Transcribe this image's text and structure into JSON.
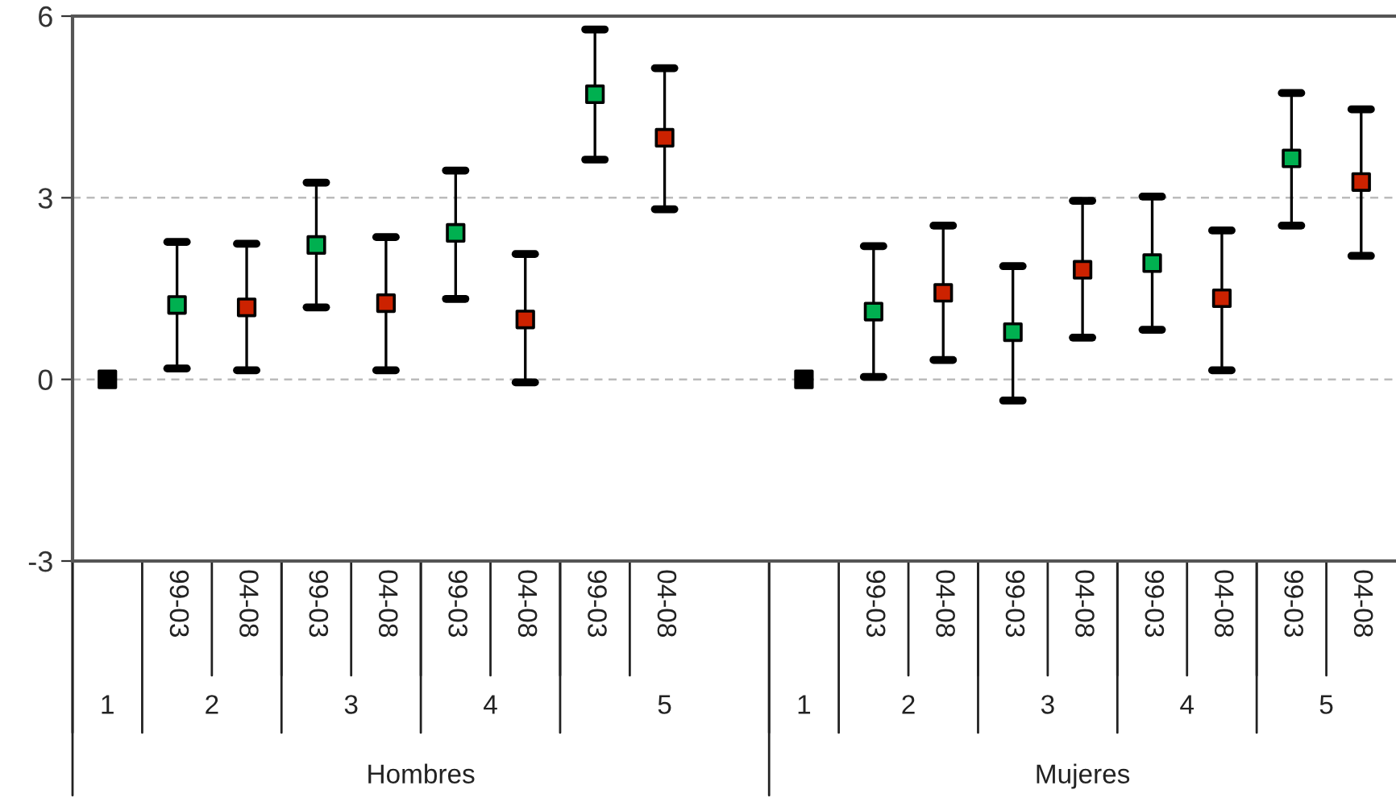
{
  "chart_data": {
    "type": "scatter",
    "categories": [
      null,
      "99-03",
      "04-08",
      "99-03",
      "04-08",
      "99-03",
      "04-08",
      "99-03",
      "04-08",
      null,
      null,
      "99-03",
      "04-08",
      "99-03",
      "04-08",
      "99-03",
      "04-08",
      "99-03",
      "04-08"
    ],
    "series": [
      {
        "color": "#000000",
        "values": [
          0,
          null,
          null,
          null,
          null,
          null,
          null,
          null,
          null,
          null,
          0,
          null,
          null,
          null,
          null,
          null,
          null,
          null,
          null
        ]
      },
      {
        "color": "#00b050",
        "values": [
          null,
          1.23,
          null,
          2.22,
          null,
          2.42,
          null,
          4.71,
          null,
          null,
          null,
          1.12,
          null,
          0.78,
          null,
          1.92,
          null,
          3.65,
          null
        ],
        "errors": [
          null,
          [
            0.18,
            2.27
          ],
          null,
          [
            1.19,
            3.25
          ],
          null,
          [
            1.33,
            3.45
          ],
          null,
          [
            3.63,
            5.78
          ],
          null,
          null,
          null,
          [
            0.04,
            2.2
          ],
          null,
          [
            -0.35,
            1.87
          ],
          null,
          [
            0.82,
            3.02
          ],
          null,
          [
            2.54,
            4.73
          ],
          null
        ]
      },
      {
        "color": "#cc2200",
        "values": [
          null,
          null,
          1.19,
          null,
          1.26,
          null,
          0.99,
          null,
          3.99,
          null,
          null,
          null,
          1.43,
          null,
          1.81,
          null,
          1.34,
          null,
          3.26
        ],
        "errors": [
          null,
          null,
          [
            0.15,
            2.24
          ],
          null,
          [
            0.15,
            2.35
          ],
          null,
          [
            -0.05,
            2.07
          ],
          null,
          [
            2.81,
            5.14
          ],
          null,
          null,
          null,
          [
            0.32,
            2.54
          ],
          null,
          [
            0.69,
            2.95
          ],
          null,
          [
            0.15,
            2.46
          ],
          null,
          [
            2.04,
            4.46
          ]
        ]
      }
    ],
    "annotations": [
      "1",
      "2",
      "3",
      "4",
      "5",
      "Hombres",
      "1",
      "2",
      "3",
      "4",
      "5",
      "Mujeres"
    ],
    "ylim": [
      -3,
      6
    ],
    "yticks": [
      -3,
      0,
      3,
      6
    ],
    "grid": "y",
    "marker": "square",
    "legend": false
  }
}
